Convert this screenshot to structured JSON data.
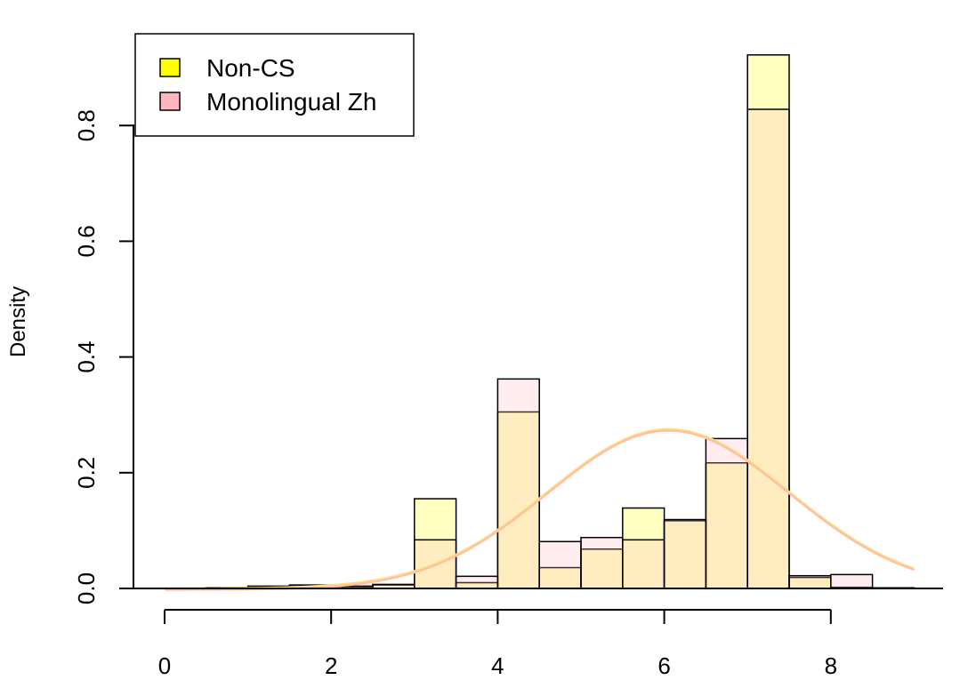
{
  "chart_data": {
    "type": "bar",
    "title": "",
    "xlabel": "",
    "ylabel": "Density",
    "xlim": [
      0,
      9.2
    ],
    "ylim": [
      0,
      0.92
    ],
    "x_ticks": [
      "0",
      "2",
      "4",
      "6",
      "8"
    ],
    "y_ticks": [
      "0.0",
      "0.2",
      "0.4",
      "0.6",
      "0.8"
    ],
    "grid": false,
    "legend_position": "top-left",
    "bin_width": 0.5,
    "bin_starts": [
      0,
      0.5,
      1.0,
      1.5,
      2.0,
      2.5,
      3.0,
      3.5,
      4.0,
      4.5,
      5.0,
      5.5,
      6.0,
      6.5,
      7.0,
      7.5,
      8.0,
      8.5
    ],
    "series": [
      {
        "name": "Non-CS",
        "color": "#ffff00",
        "values": [
          0.0,
          0.001,
          0.002,
          0.004,
          0.003,
          0.006,
          0.155,
          0.01,
          0.305,
          0.036,
          0.068,
          0.139,
          0.117,
          0.217,
          0.922,
          0.019,
          0.002,
          0.001
        ]
      },
      {
        "name": "Monolingual Zh",
        "color": "#ffb6c1",
        "values": [
          0.0,
          0.0015,
          0.004,
          0.006,
          0.004,
          0.007,
          0.084,
          0.021,
          0.362,
          0.081,
          0.088,
          0.084,
          0.119,
          0.259,
          0.828,
          0.022,
          0.024,
          0.001
        ]
      }
    ],
    "density_curves": [
      {
        "series": "Non-CS",
        "color": "#ffe07a",
        "mean": 6.05,
        "sd": 1.45
      },
      {
        "series": "Monolingual Zh",
        "color": "#ffc0a8",
        "mean": 6.05,
        "sd": 1.45
      }
    ]
  }
}
